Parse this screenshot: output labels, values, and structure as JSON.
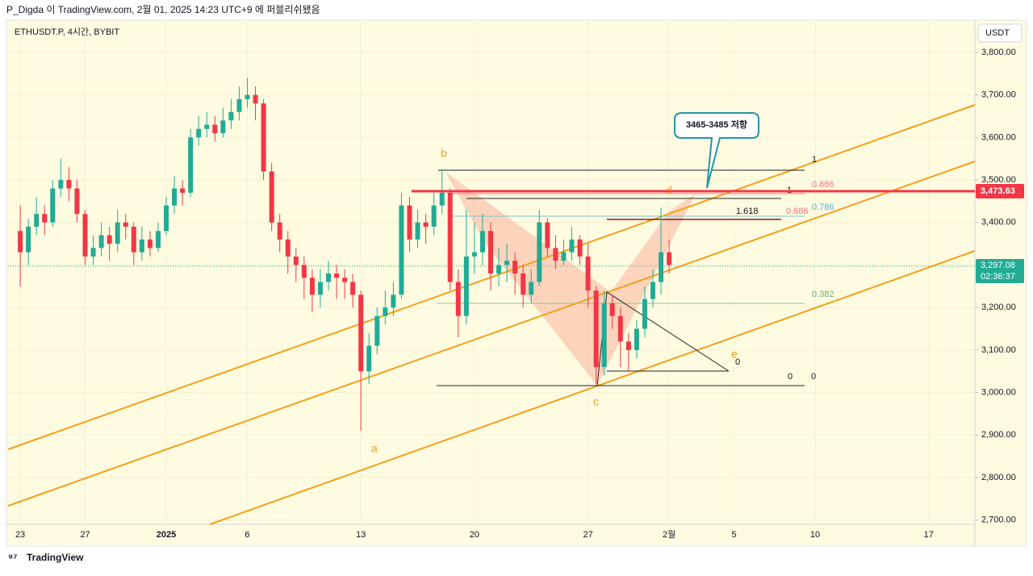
{
  "header": "P_Digda 이 TradingView.com, 2월 01, 2025 14:23 UTC+9 에 퍼블리쉬됐음",
  "footer": "TradingView",
  "chart_data": {
    "type": "candlestick",
    "title": "ETHUSDT.P, 4시간, BYBIT",
    "currency": "USDT",
    "up_color": "#22ab94",
    "down_color": "#f23645",
    "xlim": [
      -0.75,
      58.85
    ],
    "xticks": [
      {
        "value": 0,
        "label": "23"
      },
      {
        "value": 4,
        "label": "27"
      },
      {
        "value": 9,
        "label": "2025"
      },
      {
        "value": 14,
        "label": "6"
      },
      {
        "value": 21,
        "label": "13"
      },
      {
        "value": 28,
        "label": "20"
      },
      {
        "value": 35,
        "label": "27"
      },
      {
        "value": 40,
        "label": "2월"
      },
      {
        "value": 44,
        "label": "5"
      },
      {
        "value": 49,
        "label": "10"
      },
      {
        "value": 56,
        "label": "17"
      }
    ],
    "ylim": [
      2690,
      3872
    ],
    "yticks": [
      {
        "value": 2700,
        "label": "2,700.00"
      },
      {
        "value": 2800,
        "label": "2,800.00"
      },
      {
        "value": 2900,
        "label": "2,900.00"
      },
      {
        "value": 3000,
        "label": "3,000.00"
      },
      {
        "value": 3100,
        "label": "3,100.00"
      },
      {
        "value": 3200,
        "label": "3,200.00"
      },
      {
        "value": 3300,
        "label": "3,300.00"
      },
      {
        "value": 3400,
        "label": "3,400.00"
      },
      {
        "value": 3500,
        "label": "3,500.00"
      },
      {
        "value": 3600,
        "label": "3,600.00"
      },
      {
        "value": 3700,
        "label": "3,700.00"
      },
      {
        "value": 3800,
        "label": "3,800.00"
      }
    ],
    "candles": {
      "x": [
        0,
        0.5,
        1,
        1.5,
        2,
        2.5,
        3,
        3.5,
        4,
        4.5,
        5,
        5.5,
        6,
        6.5,
        7,
        7.5,
        8,
        8.5,
        9,
        9.5,
        10,
        10.5,
        11,
        11.5,
        12,
        12.5,
        13,
        13.5,
        14,
        14.5,
        15,
        15.5,
        16,
        16.5,
        17,
        17.5,
        18,
        18.5,
        19,
        19.5,
        20,
        20.5,
        21,
        21.5,
        22,
        22.5,
        23,
        23.5,
        24,
        24.5,
        25,
        25.5,
        26,
        26.5,
        27,
        27.5,
        28,
        28.5,
        29,
        29.5,
        30,
        30.5,
        31,
        31.5,
        32,
        32.5,
        33,
        33.5,
        34,
        34.5,
        35,
        35.5,
        36,
        36.5,
        37,
        37.5,
        38,
        38.5,
        39,
        39.5,
        40
      ],
      "open": [
        3380,
        3330,
        3390,
        3420,
        3400,
        3480,
        3500,
        3480,
        3420,
        3320,
        3340,
        3370,
        3350,
        3400,
        3390,
        3330,
        3360,
        3340,
        3380,
        3440,
        3480,
        3470,
        3600,
        3620,
        3630,
        3610,
        3640,
        3660,
        3690,
        3700,
        3680,
        3520,
        3400,
        3360,
        3320,
        3300,
        3270,
        3230,
        3260,
        3280,
        3270,
        3260,
        3230,
        3050,
        3110,
        3180,
        3200,
        3230,
        3440,
        3360,
        3400,
        3390,
        3440,
        3470,
        3260,
        3180,
        3320,
        3330,
        3380,
        3280,
        3300,
        3310,
        3280,
        3230,
        3260,
        3400,
        3340,
        3310,
        3330,
        3360,
        3320,
        3240,
        3060,
        3210,
        3180,
        3120,
        3100,
        3150,
        3220,
        3260,
        3330
      ],
      "high": [
        3440,
        3410,
        3460,
        3440,
        3500,
        3550,
        3530,
        3500,
        3430,
        3370,
        3400,
        3390,
        3430,
        3420,
        3400,
        3390,
        3380,
        3400,
        3460,
        3510,
        3500,
        3620,
        3650,
        3660,
        3650,
        3670,
        3690,
        3720,
        3740,
        3720,
        3690,
        3540,
        3420,
        3380,
        3340,
        3320,
        3290,
        3290,
        3310,
        3300,
        3290,
        3280,
        3240,
        3140,
        3200,
        3240,
        3260,
        3470,
        3460,
        3430,
        3420,
        3470,
        3525,
        3480,
        3290,
        3430,
        3400,
        3420,
        3400,
        3340,
        3350,
        3330,
        3300,
        3290,
        3430,
        3410,
        3370,
        3360,
        3390,
        3370,
        3350,
        3250,
        3240,
        3230,
        3200,
        3140,
        3170,
        3250,
        3290,
        3435,
        3360
      ],
      "low": [
        3250,
        3300,
        3370,
        3370,
        3390,
        3460,
        3450,
        3400,
        3300,
        3300,
        3320,
        3310,
        3330,
        3360,
        3300,
        3310,
        3320,
        3330,
        3370,
        3420,
        3440,
        3460,
        3580,
        3600,
        3590,
        3600,
        3620,
        3640,
        3670,
        3640,
        3500,
        3380,
        3330,
        3280,
        3260,
        3220,
        3190,
        3200,
        3240,
        3220,
        3220,
        3200,
        2910,
        3020,
        3090,
        3160,
        3180,
        3220,
        3330,
        3340,
        3350,
        3370,
        3420,
        3240,
        3130,
        3160,
        3280,
        3300,
        3240,
        3250,
        3260,
        3230,
        3200,
        3210,
        3250,
        3320,
        3290,
        3300,
        3310,
        3300,
        3200,
        3020,
        3040,
        3150,
        3060,
        3050,
        3080,
        3130,
        3200,
        3230,
        3280
      ],
      "close": [
        3330,
        3390,
        3420,
        3400,
        3480,
        3500,
        3480,
        3420,
        3320,
        3340,
        3370,
        3350,
        3400,
        3390,
        3330,
        3360,
        3340,
        3380,
        3440,
        3480,
        3470,
        3600,
        3620,
        3630,
        3610,
        3640,
        3660,
        3690,
        3700,
        3680,
        3520,
        3400,
        3360,
        3320,
        3300,
        3270,
        3230,
        3260,
        3280,
        3270,
        3260,
        3230,
        3050,
        3110,
        3180,
        3200,
        3230,
        3440,
        3360,
        3400,
        3390,
        3440,
        3470,
        3260,
        3180,
        3320,
        3330,
        3380,
        3280,
        3300,
        3310,
        3280,
        3230,
        3260,
        3400,
        3340,
        3310,
        3330,
        3360,
        3320,
        3240,
        3060,
        3210,
        3180,
        3120,
        3100,
        3150,
        3220,
        3260,
        3330,
        3300
      ]
    },
    "highlight_price": {
      "value": 3473.63,
      "label": "3,473.63",
      "color": "#f23645"
    },
    "last_price": {
      "value": 3297.08,
      "label": "3,297.08",
      "color": "#22ab94"
    },
    "countdown": "02:36:37",
    "annotations": {
      "wave_labels": [
        "a",
        "b",
        "c",
        "d",
        "e"
      ],
      "fib_labels": [
        "1",
        "1",
        "0.886",
        "0.886",
        "0.786",
        "1.618",
        "0.382",
        "0",
        "0",
        "0"
      ],
      "callout": "3465-3485 저항"
    }
  }
}
